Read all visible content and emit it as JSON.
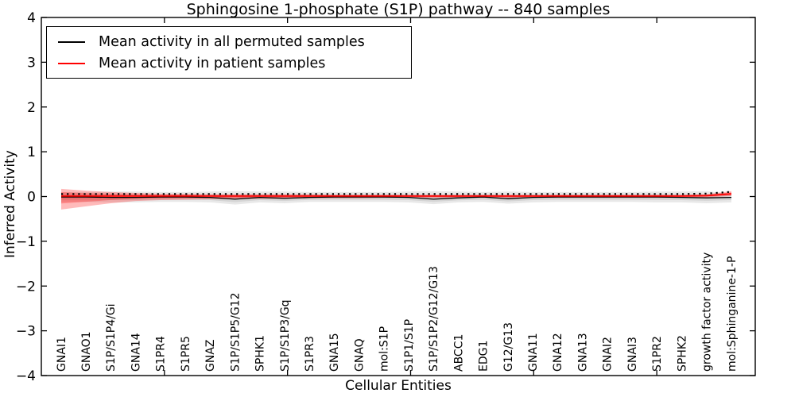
{
  "title": "Sphingosine 1-phosphate (S1P) pathway -- 840 samples",
  "colors": {
    "permuted_line": "#000000",
    "patient_line": "#ff0000",
    "permuted_band": "rgba(125,125,125,0.18)",
    "patient_band": "rgba(255,0,0,0.27)",
    "axis": "#000000"
  },
  "chart_data": {
    "type": "line",
    "title": "Sphingosine 1-phosphate (S1P) pathway -- 840 samples",
    "xlabel": "Cellular Entities",
    "ylabel": "Inferred Activity",
    "ylim": [
      -4,
      4
    ],
    "y_ticks": [
      "4",
      "3",
      "2",
      "1",
      "0",
      "−1",
      "−2",
      "−3",
      "−4"
    ],
    "grid": false,
    "legend_position": "upper left",
    "categories": [
      "GNAI1",
      "GNAO1",
      "S1P/S1P4/Gi",
      "GNA14",
      "S1PR4",
      "S1PR5",
      "GNAZ",
      "S1P/S1P5/G12",
      "SPHK1",
      "S1P/S1P3/Gq",
      "S1PR3",
      "GNA15",
      "GNAQ",
      "mol:S1P",
      "S1P1/S1P",
      "S1P/S1P2/G12/G13",
      "ABCC1",
      "EDG1",
      "G12/G13",
      "GNA11",
      "GNA12",
      "GNA13",
      "GNAI2",
      "GNAI3",
      "S1PR2",
      "SPHK2",
      "growth factor activity",
      "mol:Sphinganine-1-P"
    ],
    "series": [
      {
        "name": "Mean activity in all permuted samples",
        "color": "#000000",
        "values": [
          -0.01,
          -0.01,
          -0.02,
          -0.02,
          -0.01,
          -0.01,
          -0.02,
          -0.06,
          -0.02,
          -0.04,
          -0.02,
          -0.01,
          -0.01,
          -0.01,
          -0.02,
          -0.06,
          -0.03,
          -0.01,
          -0.05,
          -0.02,
          -0.01,
          -0.01,
          -0.01,
          -0.01,
          -0.01,
          -0.02,
          -0.03,
          -0.02
        ],
        "band_upper": [
          0.1,
          0.1,
          0.11,
          0.11,
          0.1,
          0.1,
          0.11,
          0.12,
          0.11,
          0.11,
          0.1,
          0.1,
          0.1,
          0.1,
          0.11,
          0.12,
          0.11,
          0.1,
          0.11,
          0.1,
          0.1,
          0.1,
          0.1,
          0.1,
          0.11,
          0.11,
          0.12,
          0.06
        ],
        "band_lower": [
          -0.12,
          -0.12,
          -0.13,
          -0.13,
          -0.12,
          -0.12,
          -0.13,
          -0.18,
          -0.13,
          -0.15,
          -0.12,
          -0.12,
          -0.12,
          -0.12,
          -0.13,
          -0.17,
          -0.13,
          -0.12,
          -0.16,
          -0.13,
          -0.12,
          -0.12,
          -0.12,
          -0.12,
          -0.13,
          -0.13,
          -0.15,
          -0.13
        ]
      },
      {
        "name": "Mean activity in patient samples",
        "color": "#ff0000",
        "values": [
          0.01,
          0.01,
          0.01,
          0.01,
          0.01,
          0.01,
          0.01,
          0.01,
          0.01,
          0.01,
          0.01,
          0.01,
          0.01,
          0.01,
          0.01,
          0.01,
          0.01,
          0.01,
          0.01,
          0.01,
          0.01,
          0.01,
          0.01,
          0.01,
          0.01,
          0.01,
          0.02,
          0.06
        ],
        "band_upper": [
          0.17,
          0.13,
          0.1,
          0.08,
          0.06,
          0.06,
          0.05,
          0.05,
          0.05,
          0.05,
          0.05,
          0.04,
          0.04,
          0.04,
          0.04,
          0.04,
          0.04,
          0.04,
          0.04,
          0.04,
          0.04,
          0.04,
          0.04,
          0.04,
          0.04,
          0.04,
          0.05,
          0.12
        ],
        "band_lower": [
          -0.29,
          -0.22,
          -0.15,
          -0.1,
          -0.08,
          -0.07,
          -0.06,
          -0.06,
          -0.05,
          -0.05,
          -0.04,
          -0.04,
          -0.04,
          -0.03,
          -0.03,
          -0.03,
          -0.03,
          -0.03,
          -0.03,
          -0.03,
          -0.03,
          -0.03,
          -0.03,
          -0.03,
          -0.03,
          -0.03,
          -0.02,
          0.01
        ]
      }
    ]
  }
}
